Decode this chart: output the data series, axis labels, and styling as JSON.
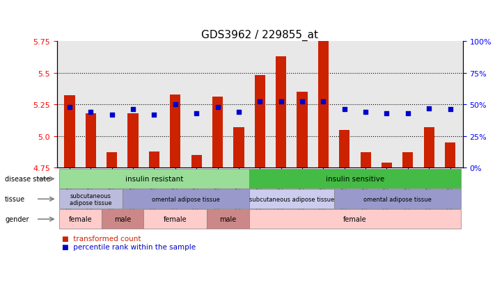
{
  "title": "GDS3962 / 229855_at",
  "samples": [
    "GSM395775",
    "GSM395777",
    "GSM395774",
    "GSM395776",
    "GSM395784",
    "GSM395785",
    "GSM395787",
    "GSM395783",
    "GSM395786",
    "GSM395778",
    "GSM395779",
    "GSM395780",
    "GSM395781",
    "GSM395782",
    "GSM395788",
    "GSM395789",
    "GSM395790",
    "GSM395791",
    "GSM395792"
  ],
  "transformed_count": [
    5.32,
    5.18,
    4.87,
    5.18,
    4.88,
    5.33,
    4.85,
    5.31,
    5.07,
    5.48,
    5.63,
    5.35,
    5.83,
    5.05,
    4.87,
    4.79,
    4.87,
    5.07,
    4.95
  ],
  "percentile_rank": [
    48,
    44,
    42,
    46,
    42,
    50,
    43,
    48,
    44,
    52,
    52,
    52,
    52,
    46,
    44,
    43,
    43,
    47,
    46
  ],
  "y_min": 4.75,
  "y_max": 5.75,
  "y_ticks_left": [
    4.75,
    5.0,
    5.25,
    5.5,
    5.75
  ],
  "y_ticks_right": [
    0,
    25,
    50,
    75,
    100
  ],
  "bar_color": "#cc2200",
  "dot_color": "#0000cc",
  "background_color": "#e8e8e8",
  "disease_state_groups": [
    {
      "label": "insulin resistant",
      "start": 0,
      "end": 9,
      "color": "#99dd99"
    },
    {
      "label": "insulin sensitive",
      "start": 9,
      "end": 19,
      "color": "#44bb44"
    }
  ],
  "tissue_groups": [
    {
      "label": "subcutaneous\nadipose tissue",
      "start": 0,
      "end": 3,
      "color": "#bbbbdd"
    },
    {
      "label": "omental adipose tissue",
      "start": 3,
      "end": 9,
      "color": "#9999cc"
    },
    {
      "label": "subcutaneous adipose tissue",
      "start": 9,
      "end": 13,
      "color": "#ccccee"
    },
    {
      "label": "omental adipose tissue",
      "start": 13,
      "end": 19,
      "color": "#9999cc"
    }
  ],
  "gender_groups": [
    {
      "label": "female",
      "start": 0,
      "end": 2,
      "color": "#ffcccc"
    },
    {
      "label": "male",
      "start": 2,
      "end": 4,
      "color": "#cc8888"
    },
    {
      "label": "female",
      "start": 4,
      "end": 7,
      "color": "#ffcccc"
    },
    {
      "label": "male",
      "start": 7,
      "end": 9,
      "color": "#cc8888"
    },
    {
      "label": "female",
      "start": 9,
      "end": 19,
      "color": "#ffcccc"
    }
  ],
  "legend_items": [
    {
      "label": "transformed count",
      "color": "#cc2200"
    },
    {
      "label": "percentile rank within the sample",
      "color": "#0000cc"
    }
  ]
}
